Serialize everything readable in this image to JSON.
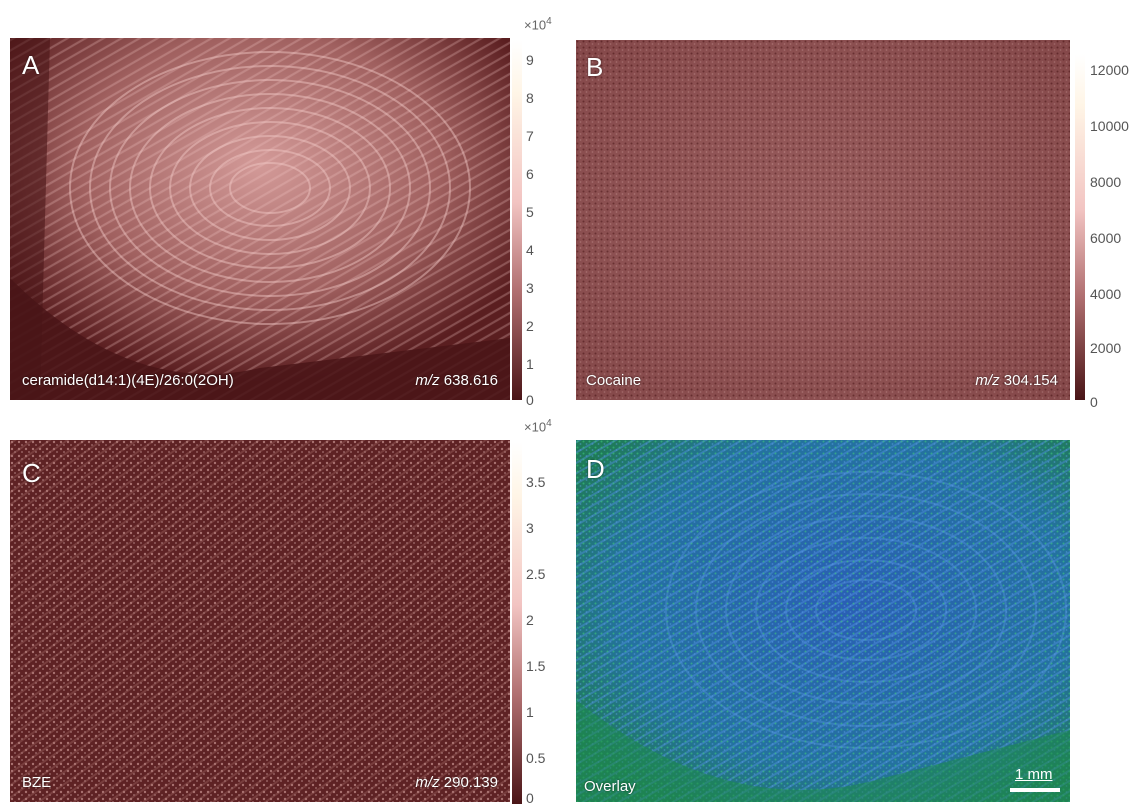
{
  "panels": {
    "A": {
      "label": "A",
      "caption": "ceramide(d14:1)(4E)/26:0(2OH)",
      "mz_prefix": "m/z",
      "mz_value": "638.616",
      "colorbar_multiplier": "×10",
      "colorbar_exponent": "4",
      "colorbar_ticks": [
        "9",
        "8",
        "7",
        "6",
        "5",
        "4",
        "3",
        "2",
        "1",
        "0"
      ]
    },
    "B": {
      "label": "B",
      "caption": "Cocaine",
      "mz_prefix": "m/z",
      "mz_value": "304.154",
      "colorbar_ticks": [
        "12000",
        "10000",
        "8000",
        "6000",
        "4000",
        "2000",
        "0"
      ]
    },
    "C": {
      "label": "C",
      "caption": "BZE",
      "mz_prefix": "m/z",
      "mz_value": "290.139",
      "colorbar_multiplier": "×10",
      "colorbar_exponent": "4",
      "colorbar_ticks": [
        "3.5",
        "3",
        "2.5",
        "2",
        "1.5",
        "1",
        "0.5",
        "0"
      ]
    },
    "D": {
      "label": "D",
      "caption": "Overlay",
      "scale_bar_label": "1 mm"
    }
  },
  "colors": {
    "map_dark": "#4a1517",
    "map_mid": "#b06f70",
    "map_light": "#f2c4c2",
    "map_pale": "#fff5e6",
    "overlay_blue": "#1f57a8",
    "overlay_green": "#2bbf6a"
  }
}
